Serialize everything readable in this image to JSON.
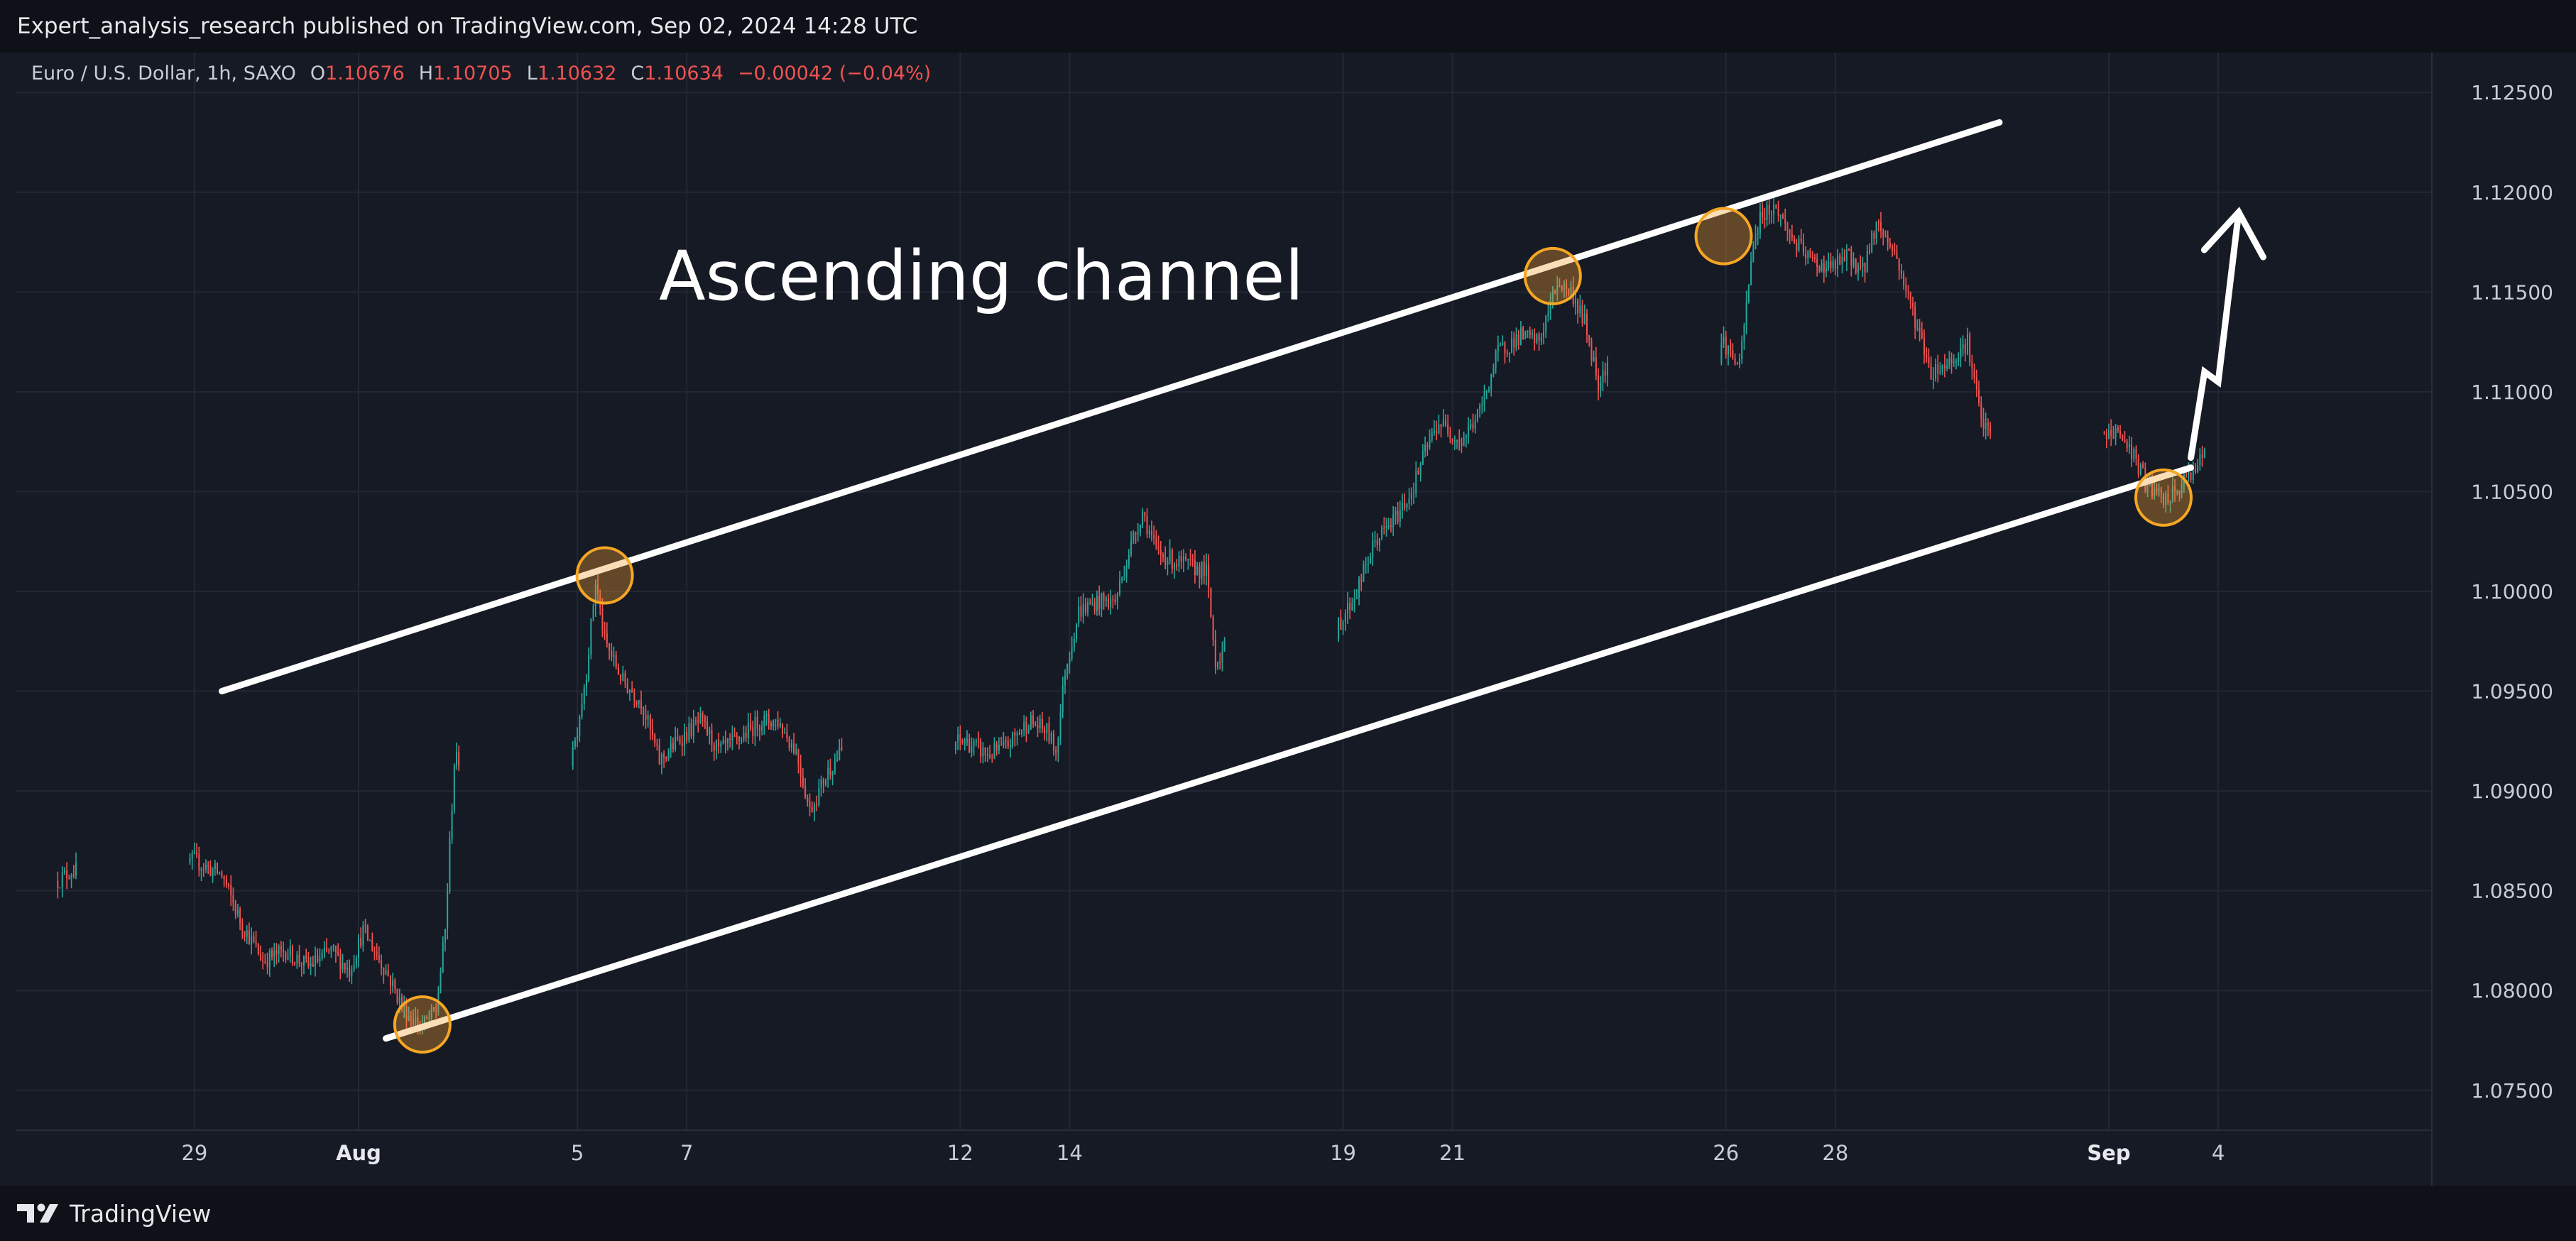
{
  "header": {
    "published_text": "Expert_analysis_research published on TradingView.com, Sep 02, 2024 14:28 UTC"
  },
  "footer": {
    "brand_label": "TradingView",
    "brand_icon": "tradingview-logo-icon"
  },
  "colors": {
    "background": "#161a25",
    "bar": "#0f1118",
    "grid": "#232733",
    "text": "#c9ccd4",
    "up": "#26a69a",
    "down": "#ef5350",
    "channel": "#ffffff",
    "touch_fill": "#f0a030",
    "touch_stroke": "#f5a623"
  },
  "chart_data": {
    "type": "candlestick",
    "symbol_legend": {
      "name": "Euro / U.S. Dollar, 1h, SAXO",
      "open_label": "O",
      "open": "1.10676",
      "high_label": "H",
      "high": "1.10705",
      "low_label": "L",
      "low": "1.10632",
      "close_label": "C",
      "close": "1.10634",
      "change": "−0.00042 (−0.04%)"
    },
    "annotation": "Ascending channel",
    "y_axis": {
      "range": [
        1.073,
        1.127
      ],
      "ticks": [
        "1.12500",
        "1.12000",
        "1.11500",
        "1.11000",
        "1.10500",
        "1.10000",
        "1.09500",
        "1.09000",
        "1.08500",
        "1.08000",
        "1.07500"
      ],
      "tick_values": [
        1.125,
        1.12,
        1.115,
        1.11,
        1.105,
        1.1,
        1.095,
        1.09,
        1.085,
        1.08,
        1.075
      ]
    },
    "x_axis": {
      "ticks": [
        "29",
        "Aug",
        "5",
        "7",
        "12",
        "14",
        "19",
        "21",
        "26",
        "28",
        "Sep",
        "4"
      ],
      "tick_dates": [
        "2024-07-29",
        "2024-08-01",
        "2024-08-05",
        "2024-08-07",
        "2024-08-12",
        "2024-08-14",
        "2024-08-19",
        "2024-08-21",
        "2024-08-26",
        "2024-08-28",
        "2024-09-02",
        "2024-09-04"
      ],
      "bold_ticks": [
        "Aug",
        "Sep"
      ]
    },
    "grid": true,
    "price_path": [
      [
        "2024-07-26 12:00",
        1.0855
      ],
      [
        "2024-07-26 18:00",
        1.086
      ],
      [
        "2024-07-29 00:00",
        1.0865
      ],
      [
        "2024-07-29 12:00",
        1.0858
      ],
      [
        "2024-07-29 20:00",
        1.0835
      ],
      [
        "2024-07-30 06:00",
        1.0815
      ],
      [
        "2024-07-30 16:00",
        1.082
      ],
      [
        "2024-07-31 02:00",
        1.0812
      ],
      [
        "2024-07-31 12:00",
        1.082
      ],
      [
        "2024-07-31 20:00",
        1.081
      ],
      [
        "2024-08-01 02:00",
        1.083
      ],
      [
        "2024-08-01 12:00",
        1.081
      ],
      [
        "2024-08-01 20:00",
        1.079
      ],
      [
        "2024-08-02 04:00",
        1.0782
      ],
      [
        "2024-08-02 10:00",
        1.079
      ],
      [
        "2024-08-02 14:00",
        1.083
      ],
      [
        "2024-08-02 18:00",
        1.0915
      ],
      [
        "2024-08-04 23:00",
        1.0925
      ],
      [
        "2024-08-05 04:00",
        1.096
      ],
      [
        "2024-08-05 08:00",
        1.1005
      ],
      [
        "2024-08-05 12:00",
        1.0975
      ],
      [
        "2024-08-05 20:00",
        1.0955
      ],
      [
        "2024-08-06 04:00",
        1.0945
      ],
      [
        "2024-08-06 12:00",
        1.0915
      ],
      [
        "2024-08-06 20:00",
        1.0925
      ],
      [
        "2024-08-07 06:00",
        1.0935
      ],
      [
        "2024-08-07 14:00",
        1.092
      ],
      [
        "2024-08-07 22:00",
        1.0925
      ],
      [
        "2024-08-08 08:00",
        1.0935
      ],
      [
        "2024-08-08 16:00",
        1.0935
      ],
      [
        "2024-08-09 00:00",
        1.092
      ],
      [
        "2024-08-09 06:00",
        1.089
      ],
      [
        "2024-08-09 14:00",
        1.091
      ],
      [
        "2024-08-09 20:00",
        1.092
      ],
      [
        "2024-08-12 02:00",
        1.0925
      ],
      [
        "2024-08-12 12:00",
        1.0918
      ],
      [
        "2024-08-12 20:00",
        1.0922
      ],
      [
        "2024-08-13 06:00",
        1.0935
      ],
      [
        "2024-08-13 14:00",
        1.093
      ],
      [
        "2024-08-13 18:00",
        1.092
      ],
      [
        "2024-08-13 22:00",
        1.096
      ],
      [
        "2024-08-14 04:00",
        1.099
      ],
      [
        "2024-08-14 12:00",
        1.0995
      ],
      [
        "2024-08-14 20:00",
        1.0995
      ],
      [
        "2024-08-15 02:00",
        1.102
      ],
      [
        "2024-08-15 08:00",
        1.104
      ],
      [
        "2024-08-15 14:00",
        1.102
      ],
      [
        "2024-08-15 22:00",
        1.1015
      ],
      [
        "2024-08-16 06:00",
        1.1012
      ],
      [
        "2024-08-16 12:00",
        1.101
      ],
      [
        "2024-08-16 16:00",
        1.0965
      ],
      [
        "2024-08-16 22:00",
        1.0975
      ],
      [
        "2024-08-18 23:00",
        1.0985
      ],
      [
        "2024-08-19 06:00",
        1.1
      ],
      [
        "2024-08-19 14:00",
        1.1025
      ],
      [
        "2024-08-19 22:00",
        1.1035
      ],
      [
        "2024-08-20 06:00",
        1.105
      ],
      [
        "2024-08-20 12:00",
        1.107
      ],
      [
        "2024-08-20 18:00",
        1.1085
      ],
      [
        "2024-08-21 04:00",
        1.1075
      ],
      [
        "2024-08-21 12:00",
        1.109
      ],
      [
        "2024-08-21 20:00",
        1.112
      ],
      [
        "2024-08-22 06:00",
        1.1128
      ],
      [
        "2024-08-22 14:00",
        1.1125
      ],
      [
        "2024-08-22 22:00",
        1.1155
      ],
      [
        "2024-08-23 04:00",
        1.115
      ],
      [
        "2024-08-23 10:00",
        1.1135
      ],
      [
        "2024-08-23 16:00",
        1.1105
      ],
      [
        "2024-08-23 20:00",
        1.1115
      ],
      [
        "2024-08-25 23:00",
        1.1125
      ],
      [
        "2024-08-26 06:00",
        1.1112
      ],
      [
        "2024-08-26 12:00",
        1.1175
      ],
      [
        "2024-08-26 16:00",
        1.119
      ],
      [
        "2024-08-26 22:00",
        1.1192
      ],
      [
        "2024-08-27 06:00",
        1.1175
      ],
      [
        "2024-08-27 14:00",
        1.1165
      ],
      [
        "2024-08-27 22:00",
        1.1162
      ],
      [
        "2024-08-28 06:00",
        1.1168
      ],
      [
        "2024-08-28 12:00",
        1.116
      ],
      [
        "2024-08-28 18:00",
        1.1185
      ],
      [
        "2024-08-29 02:00",
        1.117
      ],
      [
        "2024-08-29 10:00",
        1.114
      ],
      [
        "2024-08-29 18:00",
        1.111
      ],
      [
        "2024-08-30 02:00",
        1.1115
      ],
      [
        "2024-08-30 10:00",
        1.1125
      ],
      [
        "2024-08-30 16:00",
        1.1085
      ],
      [
        "2024-08-30 22:00",
        1.1075
      ],
      [
        "2024-09-01 23:00",
        1.1078
      ],
      [
        "2024-09-02 04:00",
        1.108
      ],
      [
        "2024-09-02 10:00",
        1.107
      ],
      [
        "2024-09-02 16:00",
        1.1055
      ],
      [
        "2024-09-03 00:00",
        1.1045
      ],
      [
        "2024-09-03 06:00",
        1.105
      ],
      [
        "2024-09-03 12:00",
        1.106
      ],
      [
        "2024-09-03 18:00",
        1.1068
      ]
    ],
    "channel": {
      "upper": [
        [
          "2024-07-29 12:00",
          1.095
        ],
        [
          "2024-08-31 00:00",
          1.1235
        ]
      ],
      "lower": [
        [
          "2024-08-01 12:00",
          1.0776
        ],
        [
          "2024-09-03 12:00",
          1.1062
        ]
      ]
    },
    "touch_points": [
      [
        "2024-08-02 04:00",
        1.0783
      ],
      [
        "2024-08-05 12:00",
        1.1008
      ],
      [
        "2024-08-22 20:00",
        1.1158
      ],
      [
        "2024-08-25 23:00",
        1.1178
      ],
      [
        "2024-09-03 00:00",
        1.1047
      ]
    ],
    "projection_arrow": [
      [
        "2024-09-03 12:00",
        1.1067
      ],
      [
        "2024-09-03 18:00",
        1.111
      ],
      [
        "2024-09-04 00:00",
        1.1105
      ],
      [
        "2024-09-04 09:00",
        1.119
      ]
    ]
  }
}
